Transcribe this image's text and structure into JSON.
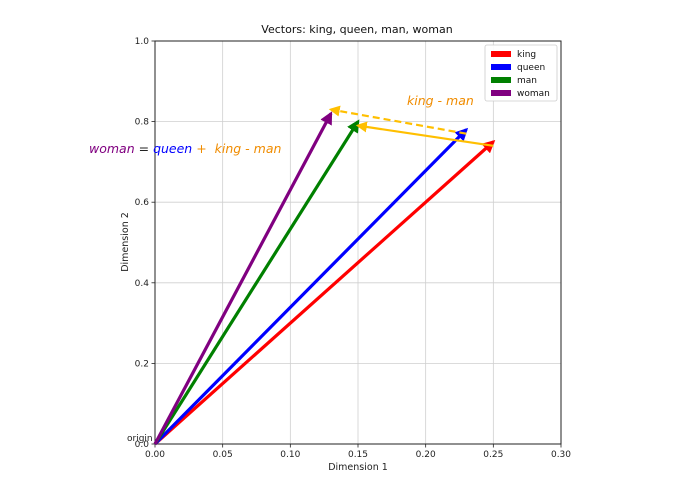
{
  "chart_data": {
    "type": "quiver",
    "title": "Vectors: king, queen, man, woman",
    "xlabel": "Dimension 1",
    "ylabel": "Dimension 2",
    "xlim": [
      0.0,
      0.3
    ],
    "ylim": [
      0.0,
      1.0
    ],
    "xticks": [
      "0.00",
      "0.05",
      "0.10",
      "0.15",
      "0.20",
      "0.25",
      "0.30"
    ],
    "yticks": [
      "0.0",
      "0.2",
      "0.4",
      "0.6",
      "0.8",
      "1.0"
    ],
    "grid": true,
    "legend_position": "top-right",
    "origin_label": "origin",
    "series": [
      {
        "name": "king",
        "color": "#ff0000",
        "x0": 0,
        "y0": 0,
        "x": 0.25,
        "y": 0.75
      },
      {
        "name": "queen",
        "color": "#0000ff",
        "x0": 0,
        "y0": 0,
        "x": 0.23,
        "y": 0.78
      },
      {
        "name": "man",
        "color": "#008000",
        "x0": 0,
        "y0": 0,
        "x": 0.15,
        "y": 0.8
      },
      {
        "name": "woman",
        "color": "#800080",
        "x0": 0,
        "y0": 0,
        "x": 0.13,
        "y": 0.82
      }
    ],
    "overlay_arrows": [
      {
        "color": "#ffbf00",
        "style": "solid",
        "x0": 0.25,
        "y0": 0.74,
        "x": 0.15,
        "y": 0.79
      },
      {
        "color": "#ffbf00",
        "style": "dashed",
        "x0": 0.23,
        "y0": 0.77,
        "x": 0.13,
        "y": 0.83
      }
    ],
    "annotations": {
      "top_right": {
        "text": "king - man",
        "color": "#f08c00"
      },
      "equation": [
        {
          "text": "woman",
          "color": "#800080"
        },
        {
          "text": " = ",
          "color": "#222222"
        },
        {
          "text": "queen",
          "color": "#0000ff"
        },
        {
          "text": " +  king - man",
          "color": "#f08c00"
        }
      ]
    }
  }
}
